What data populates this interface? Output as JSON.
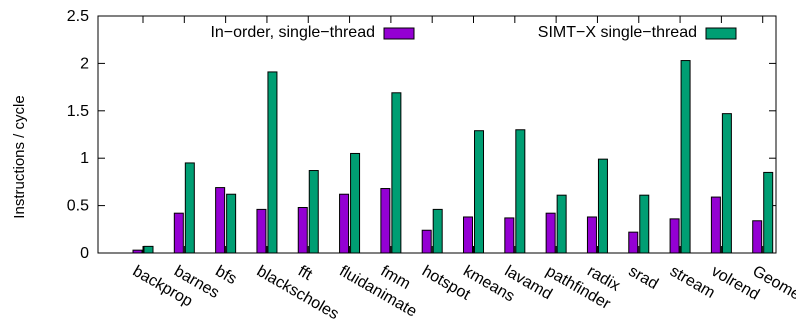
{
  "chart_data": {
    "type": "bar",
    "ylabel": "Instructions / cycle",
    "xlabel": "",
    "ylim": [
      0,
      2.5
    ],
    "yticks": [
      "0",
      "0.5",
      "1",
      "1.5",
      "2",
      "2.5"
    ],
    "grid": false,
    "legend_placement": "top",
    "categories": [
      "backprop",
      "barnes",
      "bfs",
      "blackscholes",
      "fft",
      "fluidanimate",
      "fmm",
      "hotspot",
      "kmeans",
      "lavamd",
      "pathfinder",
      "radix",
      "srad",
      "stream",
      "volrend",
      "Geomean"
    ],
    "series": [
      {
        "name": "In−order, single−thread",
        "color": "#9400d3",
        "values": [
          0.03,
          0.42,
          0.69,
          0.46,
          0.48,
          0.62,
          0.68,
          0.24,
          0.38,
          0.37,
          0.42,
          0.38,
          0.22,
          0.36,
          0.59,
          0.34
        ]
      },
      {
        "name": "SIMT−X single−thread",
        "color": "#009e73",
        "values": [
          0.07,
          0.95,
          0.62,
          1.91,
          0.87,
          1.05,
          1.69,
          0.46,
          1.29,
          1.3,
          0.61,
          0.99,
          0.61,
          2.03,
          1.47,
          0.85
        ]
      }
    ]
  }
}
